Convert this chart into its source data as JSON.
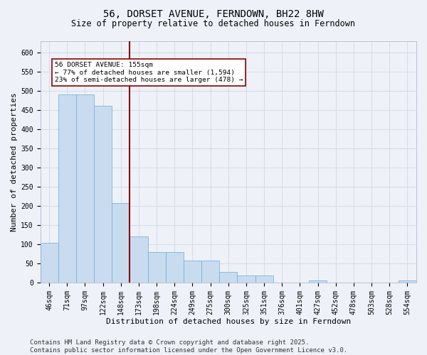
{
  "title": "56, DORSET AVENUE, FERNDOWN, BH22 8HW",
  "subtitle": "Size of property relative to detached houses in Ferndown",
  "xlabel": "Distribution of detached houses by size in Ferndown",
  "ylabel": "Number of detached properties",
  "categories": [
    "46sqm",
    "71sqm",
    "97sqm",
    "122sqm",
    "148sqm",
    "173sqm",
    "198sqm",
    "224sqm",
    "249sqm",
    "275sqm",
    "300sqm",
    "325sqm",
    "351sqm",
    "376sqm",
    "401sqm",
    "427sqm",
    "452sqm",
    "478sqm",
    "503sqm",
    "528sqm",
    "554sqm"
  ],
  "values": [
    105,
    490,
    490,
    460,
    207,
    120,
    80,
    80,
    58,
    58,
    28,
    20,
    20,
    0,
    0,
    7,
    0,
    0,
    0,
    0,
    7
  ],
  "bar_color": "#c9dcef",
  "bar_edge_color": "#6aaad4",
  "vline_x": 4.5,
  "vline_color": "#8b0000",
  "annotation_text": "56 DORSET AVENUE: 155sqm\n← 77% of detached houses are smaller (1,594)\n23% of semi-detached houses are larger (478) →",
  "annotation_box_color": "#ffffff",
  "annotation_box_edge_color": "#8b0000",
  "ylim": [
    0,
    630
  ],
  "yticks": [
    0,
    50,
    100,
    150,
    200,
    250,
    300,
    350,
    400,
    450,
    500,
    550,
    600
  ],
  "footer_text": "Contains HM Land Registry data © Crown copyright and database right 2025.\nContains public sector information licensed under the Open Government Licence v3.0.",
  "bg_color": "#eef2f8",
  "plot_bg_color": "#eef2f8",
  "grid_color": "#d8dce8",
  "title_fontsize": 10,
  "subtitle_fontsize": 8.5,
  "axis_fontsize": 8,
  "tick_fontsize": 7,
  "footer_fontsize": 6.5
}
